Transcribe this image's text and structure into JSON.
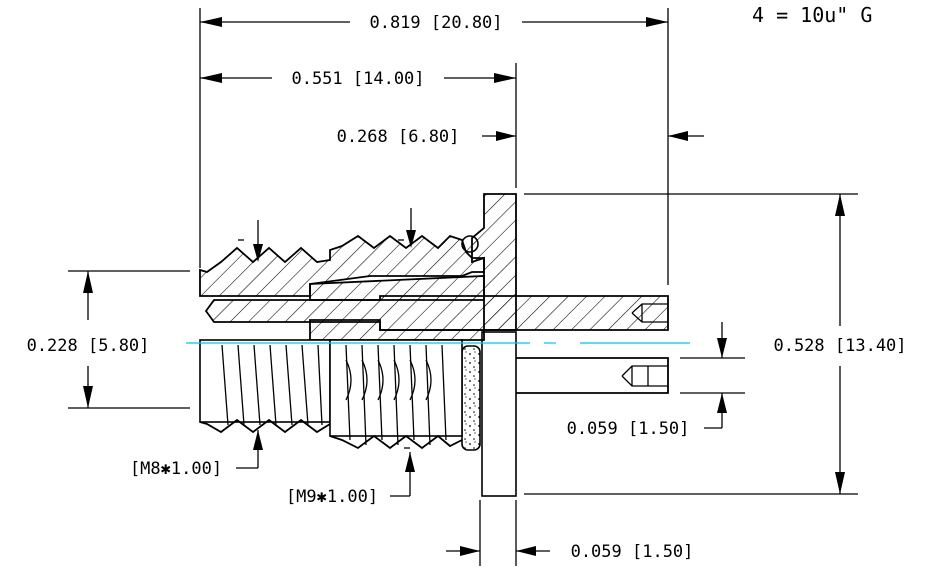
{
  "note": {
    "text": "4  =  10u\"  G"
  },
  "dimensions": {
    "overall_length": "0.819 [20.80]",
    "body_length": "0.551 [14.00]",
    "flange_offset": "0.268 [6.80]",
    "thread_diameter": "0.228 [5.80]",
    "flange_height": "0.528 [13.40]",
    "pin_offset": "0.059 [1.50]",
    "flange_thickness": "0.059 [1.50]"
  },
  "callouts": {
    "thread_m8": "[M8✱1.00]",
    "thread_m9": "[M9✱1.00]"
  },
  "colors": {
    "centerline": "#00c8e0",
    "line": "#000000"
  }
}
